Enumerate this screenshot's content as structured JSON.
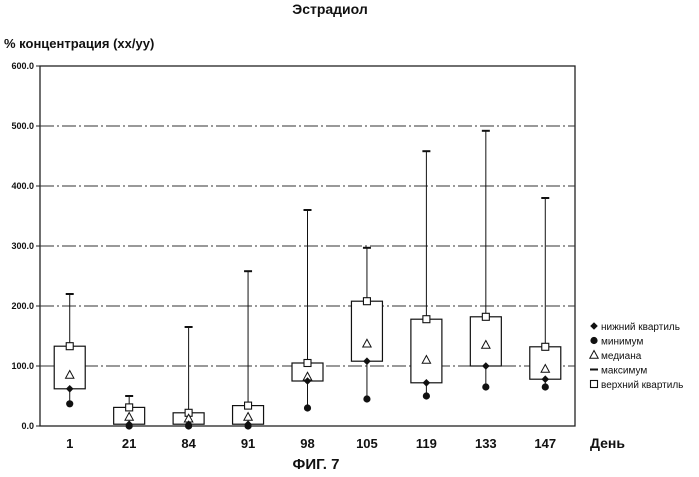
{
  "chart_data": {
    "type": "box",
    "title": "Эстрадиол",
    "ylabel": "% концентрация (xx/yy)",
    "xlabel": "День",
    "figure_caption": "ФИГ. 7",
    "ylim": [
      0,
      600
    ],
    "yticks": [
      "0.0",
      "100.0",
      "200.0",
      "300.0",
      "400.0",
      "500.0",
      "600.0"
    ],
    "grid": true,
    "legend_position": "right",
    "categories": [
      "1",
      "21",
      "84",
      "91",
      "98",
      "105",
      "119",
      "133",
      "147"
    ],
    "series": [
      {
        "name": "нижний квартиль",
        "marker": "diamond",
        "values": [
          62,
          3,
          3,
          3,
          75,
          108,
          72,
          100,
          78
        ]
      },
      {
        "name": "минимум",
        "marker": "filled-circle",
        "values": [
          37,
          0,
          0,
          0,
          30,
          45,
          50,
          65,
          65
        ]
      },
      {
        "name": "медиана",
        "marker": "triangle",
        "values": [
          85,
          15,
          12,
          15,
          82,
          137,
          110,
          135,
          95
        ]
      },
      {
        "name": "максимум",
        "marker": "dash",
        "values": [
          220,
          50,
          165,
          258,
          360,
          297,
          458,
          492,
          380
        ]
      },
      {
        "name": "верхний квартиль",
        "marker": "open-square",
        "values": [
          133,
          31,
          22,
          34,
          105,
          208,
          178,
          182,
          132
        ]
      }
    ]
  }
}
